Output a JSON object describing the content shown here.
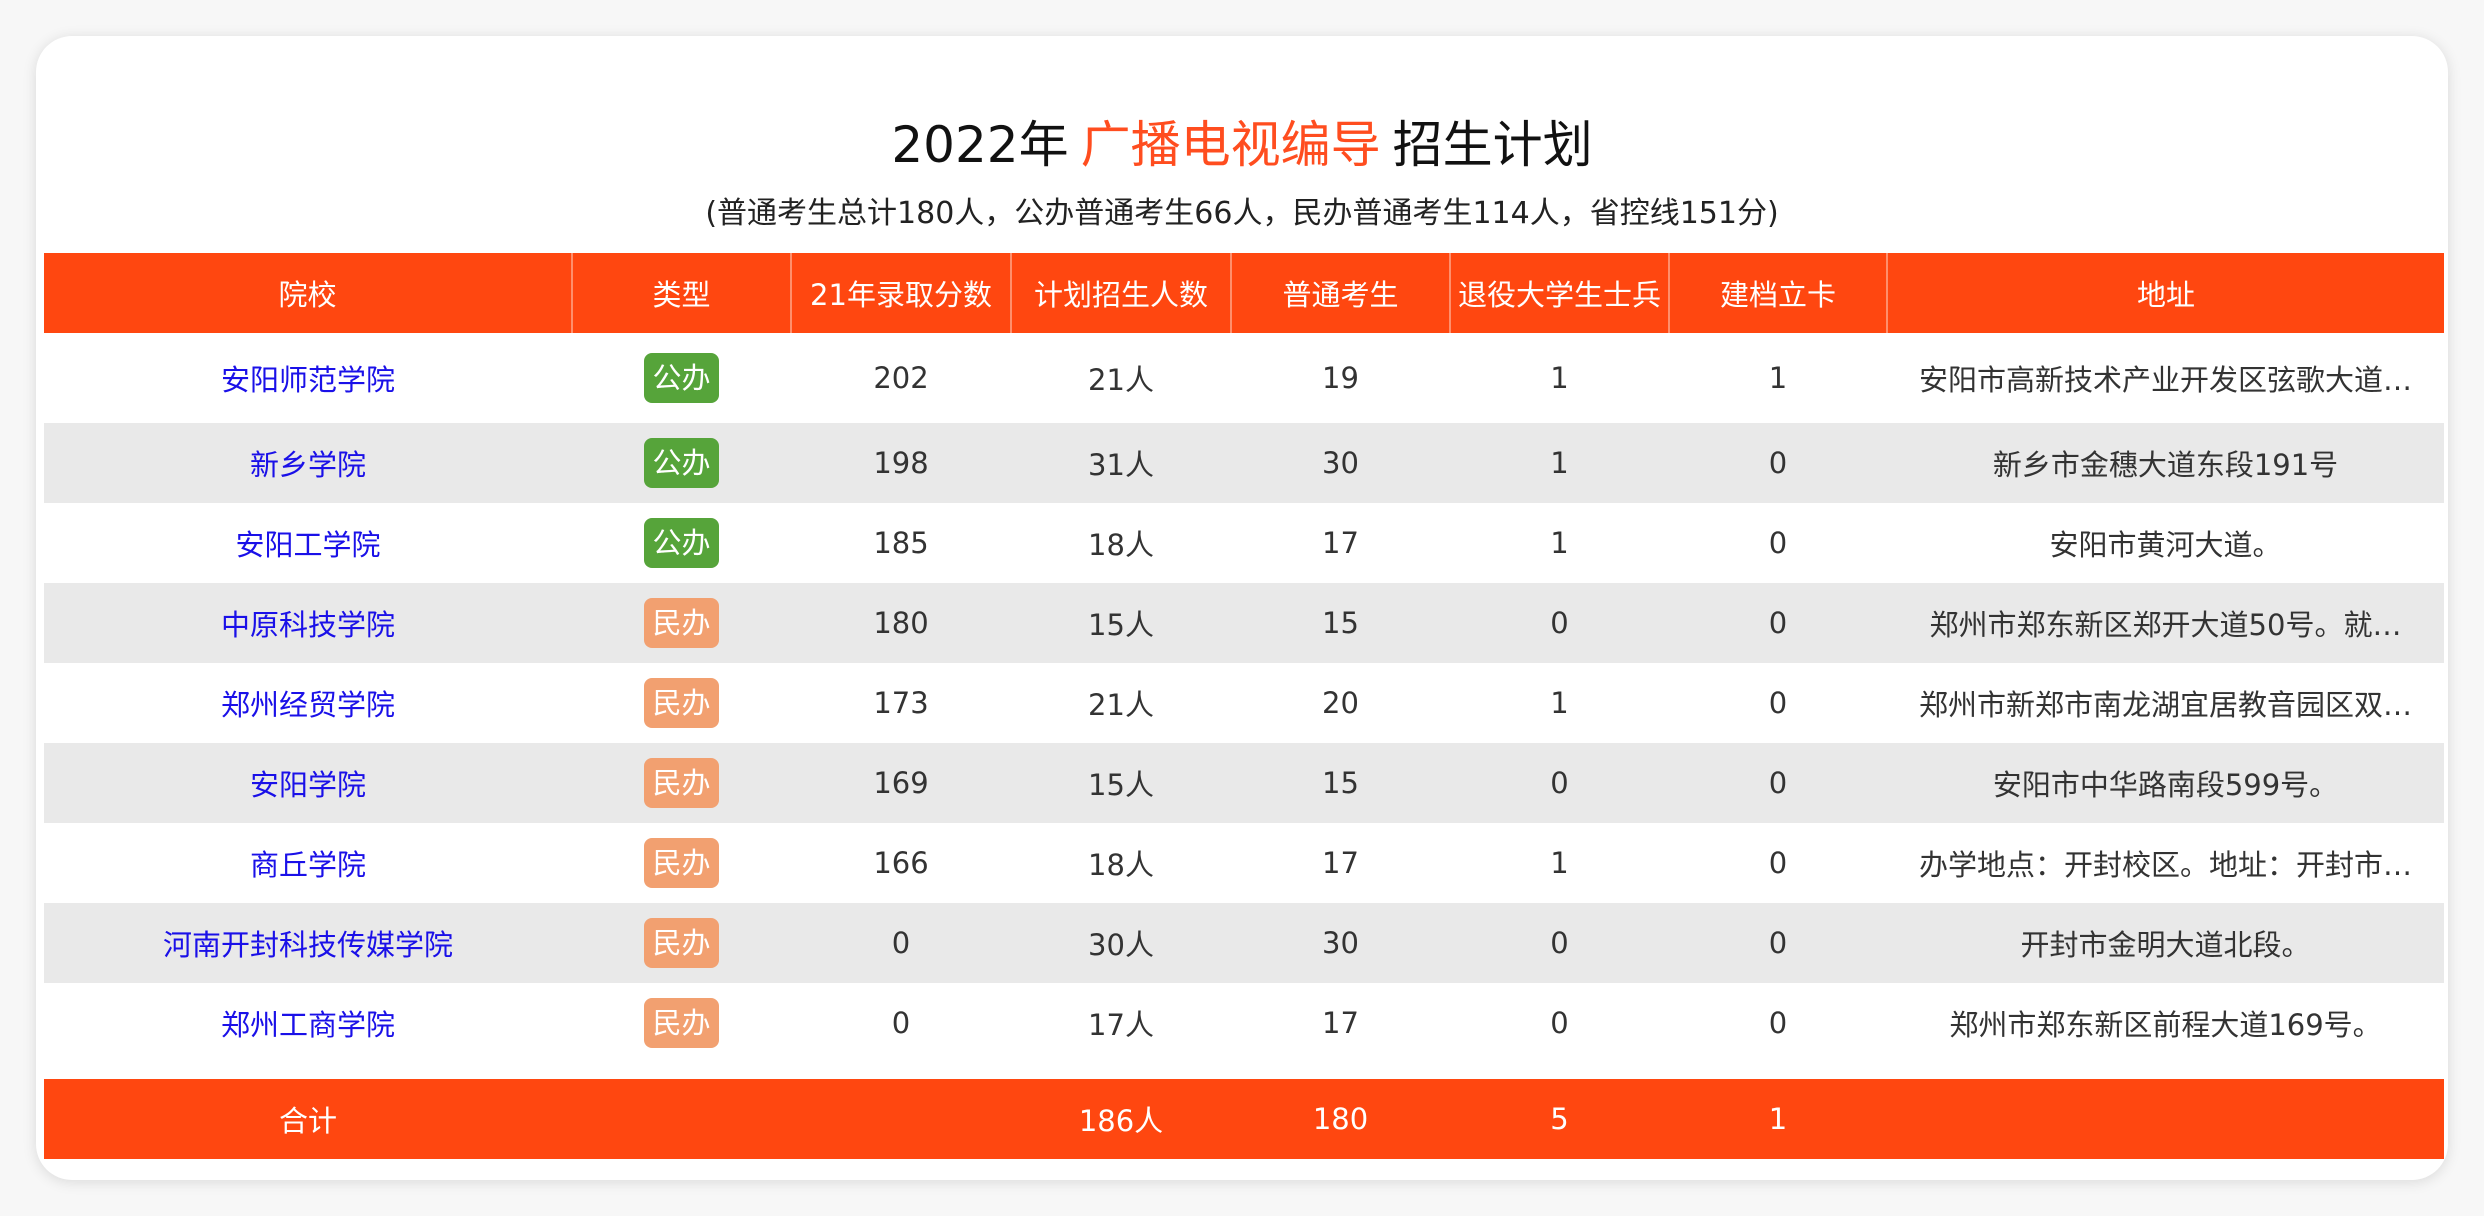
{
  "title": {
    "year": "2022年",
    "major": "广播电视编导",
    "suffix": "招生计划"
  },
  "subtitle": "(普通考生总计180人，公办普通考生66人，民办普通考生114人，省控线151分)",
  "columns": [
    "院校",
    "类型",
    "21年录取分数",
    "计划招生人数",
    "普通考生",
    "退役大学生士兵",
    "建档立卡",
    "地址"
  ],
  "rows": [
    {
      "school": "安阳师范学院",
      "type": "公办",
      "kind": "public",
      "score": "202",
      "plan": "21人",
      "regular": "19",
      "veteran": "1",
      "poverty": "1",
      "address": "安阳市高新技术产业开发区弦歌大道…"
    },
    {
      "school": "新乡学院",
      "type": "公办",
      "kind": "public",
      "score": "198",
      "plan": "31人",
      "regular": "30",
      "veteran": "1",
      "poverty": "0",
      "address": "新乡市金穗大道东段191号"
    },
    {
      "school": "安阳工学院",
      "type": "公办",
      "kind": "public",
      "score": "185",
      "plan": "18人",
      "regular": "17",
      "veteran": "1",
      "poverty": "0",
      "address": "安阳市黄河大道。"
    },
    {
      "school": "中原科技学院",
      "type": "民办",
      "kind": "private",
      "score": "180",
      "plan": "15人",
      "regular": "15",
      "veteran": "0",
      "poverty": "0",
      "address": "郑州市郑东新区郑开大道50号。就…"
    },
    {
      "school": "郑州经贸学院",
      "type": "民办",
      "kind": "private",
      "score": "173",
      "plan": "21人",
      "regular": "20",
      "veteran": "1",
      "poverty": "0",
      "address": "郑州市新郑市南龙湖宜居教音园区双…"
    },
    {
      "school": "安阳学院",
      "type": "民办",
      "kind": "private",
      "score": "169",
      "plan": "15人",
      "regular": "15",
      "veteran": "0",
      "poverty": "0",
      "address": "安阳市中华路南段599号。"
    },
    {
      "school": "商丘学院",
      "type": "民办",
      "kind": "private",
      "score": "166",
      "plan": "18人",
      "regular": "17",
      "veteran": "1",
      "poverty": "0",
      "address": "办学地点：开封校区。地址：开封市…"
    },
    {
      "school": "河南开封科技传媒学院",
      "type": "民办",
      "kind": "private",
      "score": "0",
      "plan": "30人",
      "regular": "30",
      "veteran": "0",
      "poverty": "0",
      "address": "开封市金明大道北段。"
    },
    {
      "school": "郑州工商学院",
      "type": "民办",
      "kind": "private",
      "score": "0",
      "plan": "17人",
      "regular": "17",
      "veteran": "0",
      "poverty": "0",
      "address": "郑州市郑东新区前程大道169号。"
    }
  ],
  "total": {
    "label": "合计",
    "plan": "186人",
    "regular": "180",
    "veteran": "5",
    "poverty": "1"
  },
  "colors": {
    "header": "#ff4710",
    "accent": "#ff4d1f",
    "school_link": "#1a10e8",
    "public_badge": "#56a43a",
    "private_badge": "#f2a070"
  }
}
